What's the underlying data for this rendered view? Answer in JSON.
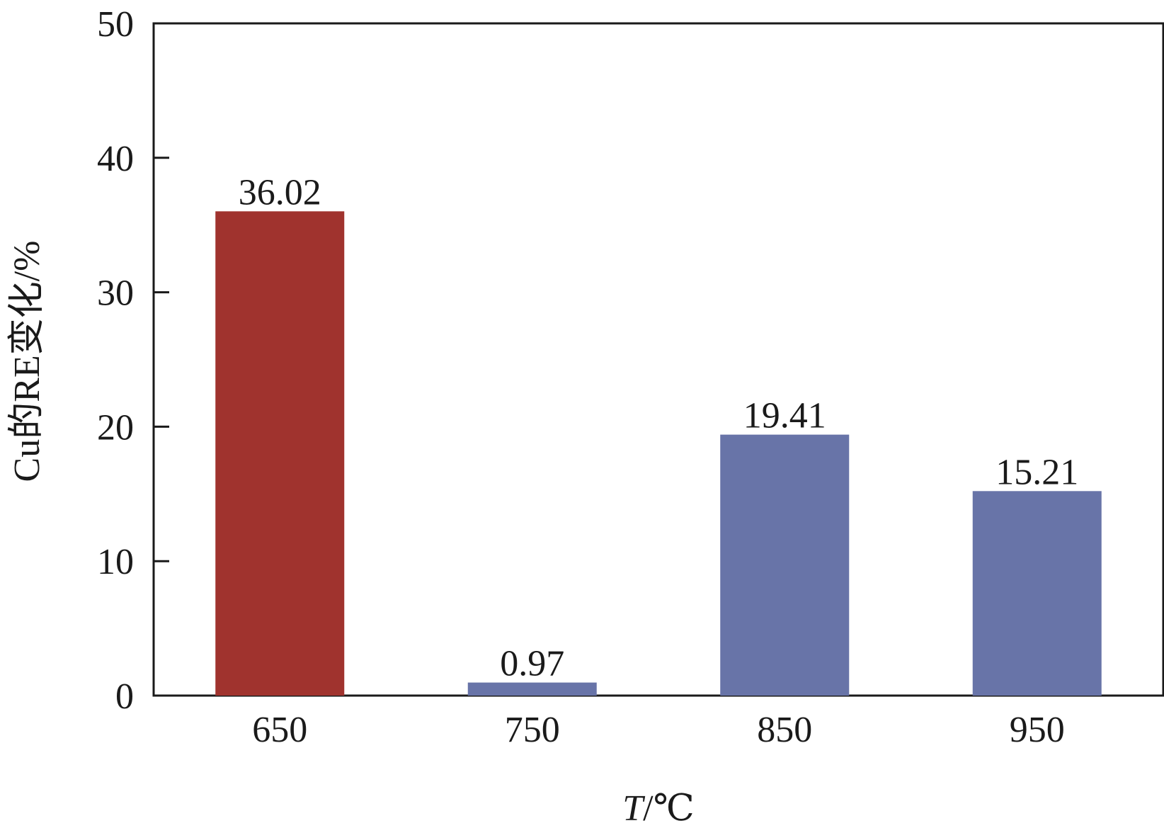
{
  "chart_data": {
    "type": "bar",
    "categories": [
      "650",
      "750",
      "850",
      "950"
    ],
    "values": [
      36.02,
      0.97,
      19.41,
      15.21
    ],
    "value_labels": [
      "36.02",
      "0.97",
      "19.41",
      "15.21"
    ],
    "bar_colors": [
      "#a0332e",
      "#6874a8",
      "#6874a8",
      "#6874a8"
    ],
    "xlabel_italic": "T",
    "xlabel_unit": "/℃",
    "ylabel": "Cu的RE变化/%",
    "ylim": [
      0,
      50
    ],
    "yticks": [
      0,
      10,
      20,
      30,
      40,
      50
    ],
    "ytick_labels": [
      "0",
      "10",
      "20",
      "30",
      "40",
      "50"
    ],
    "grid": false,
    "legend": false
  }
}
